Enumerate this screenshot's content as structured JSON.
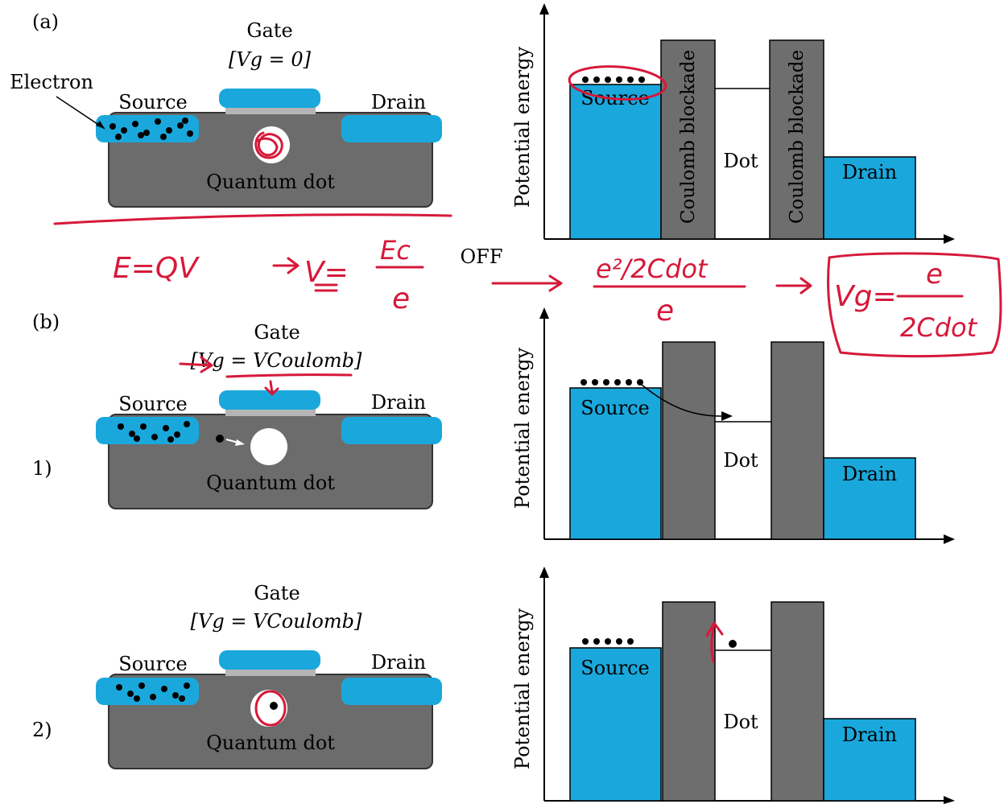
{
  "panel_labels": {
    "a": "(a)",
    "b": "(b)",
    "b1": "1)",
    "b2": "2)"
  },
  "device": {
    "gate": "Gate",
    "source": "Source",
    "drain": "Drain",
    "quantum_dot": "Quantum dot",
    "electron": "Electron",
    "vg_zero": "[Vg = 0]",
    "vg_coulomb": "[Vg = VCoulomb]"
  },
  "energy_plot": {
    "ylabel": "Potential energy",
    "source": "Source",
    "drain": "Drain",
    "dot": "Dot",
    "barrier": "Coulomb blockade"
  },
  "off_label": "OFF",
  "annotations": {
    "eq1": "E=QV",
    "eq2": "→ V= Ec/e",
    "eq3": "→ e²/2Cdot / e",
    "eq4": "→ Vg= e/2Cdot"
  },
  "colors": {
    "lead": "#1aa8dc",
    "substrate": "#6c6c6c",
    "barrier": "#6e6e6e",
    "ink": "#d6193a"
  }
}
